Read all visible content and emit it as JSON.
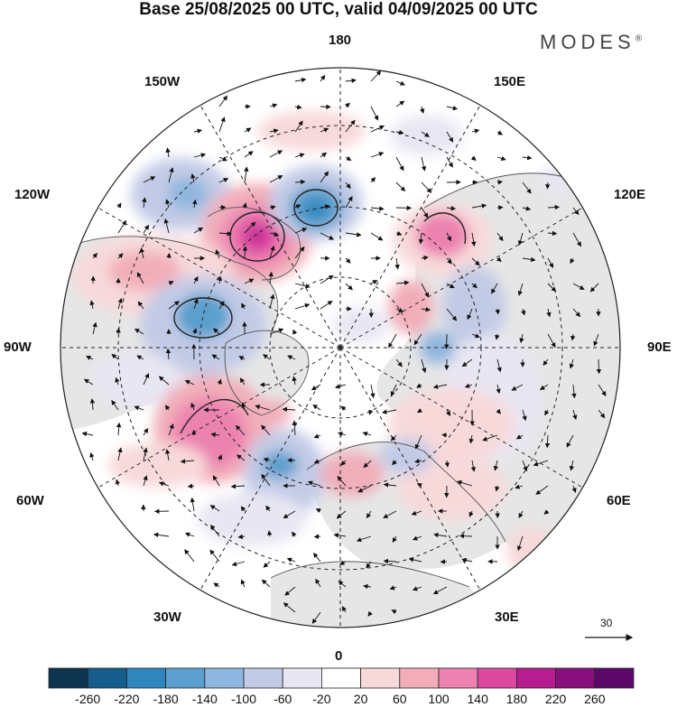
{
  "header": {
    "title": "Base 25/08/2025 00 UTC, valid 04/09/2025 00 UTC",
    "brand": "MODES",
    "brand_mark": "®"
  },
  "map": {
    "projection": "north-polar-stereographic",
    "longitude_labels": {
      "top": "180",
      "upper_left": "150W",
      "upper_right": "150E",
      "left_upper": "120W",
      "right_upper": "120E",
      "left": "90W",
      "right": "90E",
      "left_lower": "60W",
      "right_lower": "60E",
      "lower_left": "30W",
      "lower_right": "30E",
      "bottom": "0"
    },
    "vector_scale": {
      "label": "30"
    }
  },
  "colorbar": {
    "levels": [
      "-260",
      "-220",
      "-180",
      "-140",
      "-100",
      "-60",
      "-20",
      "20",
      "60",
      "100",
      "140",
      "180",
      "220",
      "260"
    ],
    "colors": [
      "#0d3550",
      "#155d8a",
      "#2f86bd",
      "#5a9fcd",
      "#8fb6de",
      "#c2cbe6",
      "#e8e6f3",
      "#ffffff",
      "#f8d9da",
      "#f1aeb9",
      "#ec82b0",
      "#dc4aa0",
      "#b61d8f",
      "#87107a",
      "#5a0a66"
    ]
  }
}
